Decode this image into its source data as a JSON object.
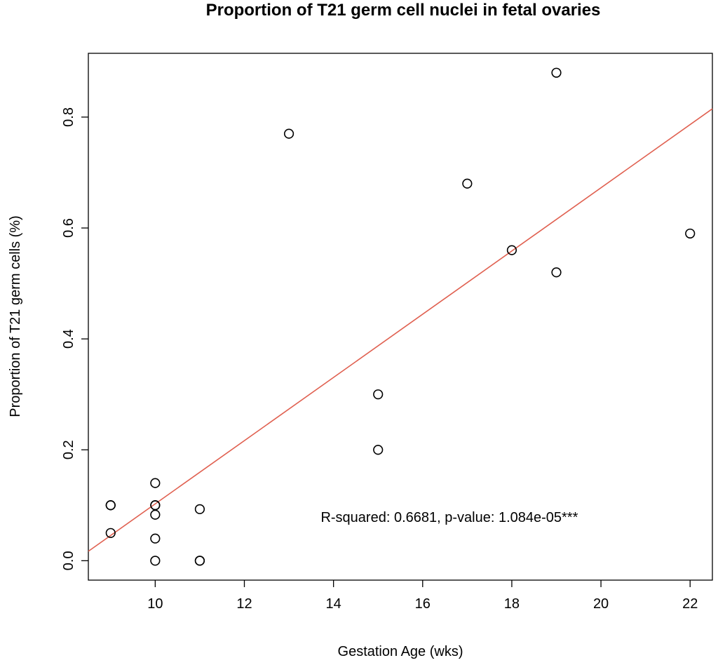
{
  "chart_data": {
    "type": "scatter",
    "title": "Proportion of T21 germ cell nuclei in fetal ovaries",
    "xlabel": "Gestation Age (wks)",
    "ylabel": "Proportion of T21 germ cells (%)",
    "xlim": [
      8.5,
      22.5
    ],
    "ylim": [
      -0.035,
      0.915
    ],
    "x_ticks": [
      10,
      12,
      14,
      16,
      18,
      20,
      22
    ],
    "y_ticks": [
      0.0,
      0.2,
      0.4,
      0.6,
      0.8
    ],
    "grid": false,
    "points": [
      {
        "x": 9,
        "y": 0.1
      },
      {
        "x": 9,
        "y": 0.1
      },
      {
        "x": 9,
        "y": 0.05
      },
      {
        "x": 10,
        "y": 0.14
      },
      {
        "x": 10,
        "y": 0.1
      },
      {
        "x": 10,
        "y": 0.1
      },
      {
        "x": 10,
        "y": 0.083
      },
      {
        "x": 10,
        "y": 0.04
      },
      {
        "x": 10,
        "y": 0.0
      },
      {
        "x": 11,
        "y": 0.093
      },
      {
        "x": 11,
        "y": 0.0
      },
      {
        "x": 11,
        "y": 0.0
      },
      {
        "x": 13,
        "y": 0.77
      },
      {
        "x": 15,
        "y": 0.3
      },
      {
        "x": 15,
        "y": 0.2
      },
      {
        "x": 17,
        "y": 0.68
      },
      {
        "x": 18,
        "y": 0.56
      },
      {
        "x": 19,
        "y": 0.88
      },
      {
        "x": 19,
        "y": 0.52
      },
      {
        "x": 22,
        "y": 0.59
      }
    ],
    "fit_line": {
      "color": "#e06050",
      "x": [
        8.5,
        22.5
      ],
      "y": [
        0.017,
        0.815
      ]
    },
    "annotation": {
      "text": "R-squared: 0.6681,  p-value: 1.084e-05***",
      "x": 16.6,
      "y": 0.07
    }
  }
}
